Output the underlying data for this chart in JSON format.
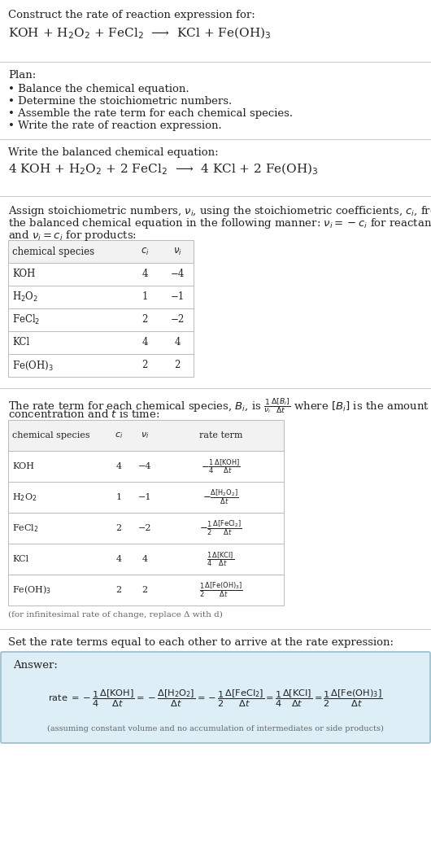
{
  "bg_color": "#ffffff",
  "text_color": "#222222",
  "gray_text": "#666666",
  "table_border": "#bbbbbb",
  "table_header_bg": "#f2f2f2",
  "answer_bg": "#ddeef6",
  "answer_border": "#99bbcc",
  "divider_color": "#cccccc",
  "s1_line1": "Construct the rate of reaction expression for:",
  "s1_line2": "KOH + H$_2$O$_2$ + FeCl$_2$  ⟶  KCl + Fe(OH)$_3$",
  "s2_header": "Plan:",
  "s2_bullets": [
    "• Balance the chemical equation.",
    "• Determine the stoichiometric numbers.",
    "• Assemble the rate term for each chemical species.",
    "• Write the rate of reaction expression."
  ],
  "s3_header": "Write the balanced chemical equation:",
  "s3_eq": "4 KOH + H$_2$O$_2$ + 2 FeCl$_2$  ⟶  4 KCl + 2 Fe(OH)$_3$",
  "s4_l1": "Assign stoichiometric numbers, $\\nu_i$, using the stoichiometric coefficients, $c_i$, from",
  "s4_l2": "the balanced chemical equation in the following manner: $\\nu_i = -c_i$ for reactants",
  "s4_l3": "and $\\nu_i = c_i$ for products:",
  "t1_species": [
    "KOH",
    "H$_2$O$_2$",
    "FeCl$_2$",
    "KCl",
    "Fe(OH)$_3$"
  ],
  "t1_ci": [
    "4",
    "1",
    "2",
    "4",
    "2"
  ],
  "t1_nu": [
    "−4",
    "−1",
    "−2",
    "4",
    "2"
  ],
  "s5_l1": "The rate term for each chemical species, $B_i$, is $\\frac{1}{\\nu_i}\\frac{\\Delta[B_i]}{\\Delta t}$ where $[B_i]$ is the amount",
  "s5_l2": "concentration and $t$ is time:",
  "t2_species": [
    "KOH",
    "H$_2$O$_2$",
    "FeCl$_2$",
    "KCl",
    "Fe(OH)$_3$"
  ],
  "t2_ci": [
    "4",
    "1",
    "2",
    "4",
    "2"
  ],
  "t2_nu": [
    "−4",
    "−1",
    "−2",
    "4",
    "2"
  ],
  "t2_rate": [
    "$-\\frac{1}{4}\\frac{\\Delta[\\mathrm{KOH}]}{\\Delta t}$",
    "$-\\frac{\\Delta[\\mathrm{H_2O_2}]}{\\Delta t}$",
    "$-\\frac{1}{2}\\frac{\\Delta[\\mathrm{FeCl_2}]}{\\Delta t}$",
    "$\\frac{1}{4}\\frac{\\Delta[\\mathrm{KCl}]}{\\Delta t}$",
    "$\\frac{1}{2}\\frac{\\Delta[\\mathrm{Fe(OH)_3}]}{\\Delta t}$"
  ],
  "infinitesimal": "(for infinitesimal rate of change, replace Δ with d)",
  "s6_text": "Set the rate terms equal to each other to arrive at the rate expression:",
  "answer_label": "Answer:",
  "answer_note": "(assuming constant volume and no accumulation of intermediates or side products)",
  "rate_expr_lhs": "rate $= -\\dfrac{1}{4}\\dfrac{\\Delta[\\mathrm{KOH}]}{\\Delta t}$",
  "rate_expr_2": "$= -\\dfrac{\\Delta[\\mathrm{H_2O_2}]}{\\Delta t}$",
  "rate_expr_3": "$= -\\dfrac{1}{2}\\dfrac{\\Delta[\\mathrm{FeCl_2}]}{\\Delta t}$",
  "rate_expr_4": "$= \\dfrac{1}{4}\\dfrac{\\Delta[\\mathrm{KCl}]}{\\Delta t}$",
  "rate_expr_5": "$= \\dfrac{1}{2}\\dfrac{\\Delta[\\mathrm{Fe(OH)_3}]}{\\Delta t}$"
}
